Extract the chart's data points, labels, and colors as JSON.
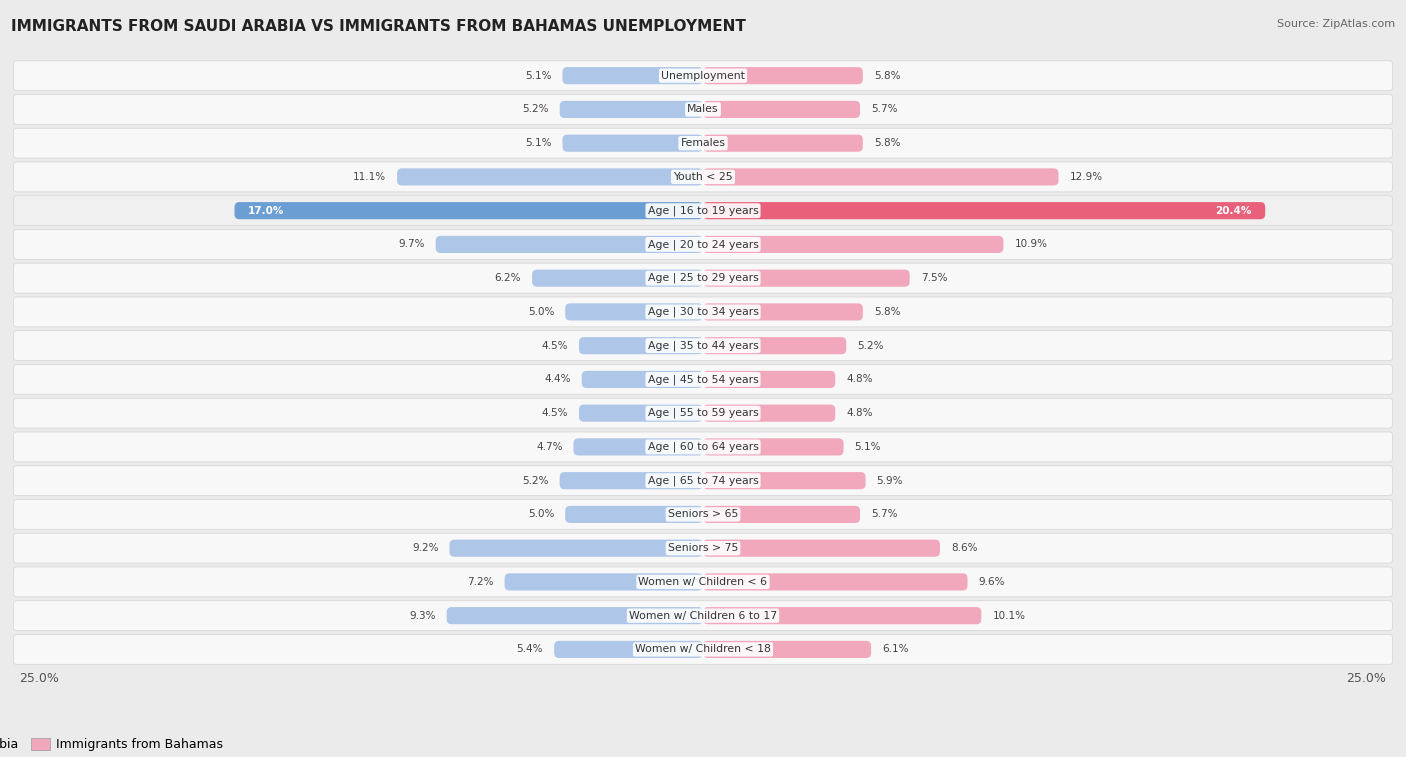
{
  "title": "IMMIGRANTS FROM SAUDI ARABIA VS IMMIGRANTS FROM BAHAMAS UNEMPLOYMENT",
  "source": "Source: ZipAtlas.com",
  "categories": [
    "Unemployment",
    "Males",
    "Females",
    "Youth < 25",
    "Age | 16 to 19 years",
    "Age | 20 to 24 years",
    "Age | 25 to 29 years",
    "Age | 30 to 34 years",
    "Age | 35 to 44 years",
    "Age | 45 to 54 years",
    "Age | 55 to 59 years",
    "Age | 60 to 64 years",
    "Age | 65 to 74 years",
    "Seniors > 65",
    "Seniors > 75",
    "Women w/ Children < 6",
    "Women w/ Children 6 to 17",
    "Women w/ Children < 18"
  ],
  "left_values": [
    5.1,
    5.2,
    5.1,
    11.1,
    17.0,
    9.7,
    6.2,
    5.0,
    4.5,
    4.4,
    4.5,
    4.7,
    5.2,
    5.0,
    9.2,
    7.2,
    9.3,
    5.4
  ],
  "right_values": [
    5.8,
    5.7,
    5.8,
    12.9,
    20.4,
    10.9,
    7.5,
    5.8,
    5.2,
    4.8,
    4.8,
    5.1,
    5.9,
    5.7,
    8.6,
    9.6,
    10.1,
    6.1
  ],
  "left_color": "#aec6e8",
  "right_color": "#f2a8bc",
  "highlight_left_color": "#6b9fd4",
  "highlight_right_color": "#e8607a",
  "background_color": "#ebebeb",
  "row_bg_color": "#f8f8f8",
  "max_value": 25.0,
  "left_legend": "Immigrants from Saudi Arabia",
  "right_legend": "Immigrants from Bahamas",
  "legend_left_color": "#aec6e8",
  "legend_right_color": "#f2a8bc",
  "highlight_row_idx": 4
}
